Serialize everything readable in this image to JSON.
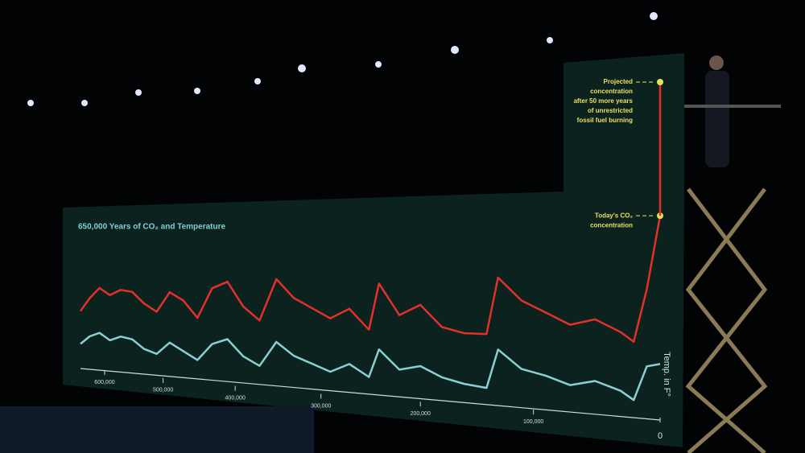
{
  "chart_data": {
    "type": "line",
    "title": "650,000 Years of CO₂ and Temperature",
    "y2_label": "Temp. in F°",
    "x": [
      650000,
      630000,
      610000,
      590000,
      570000,
      550000,
      530000,
      510000,
      490000,
      470000,
      450000,
      430000,
      410000,
      390000,
      370000,
      350000,
      330000,
      310000,
      290000,
      270000,
      250000,
      240000,
      220000,
      200000,
      180000,
      160000,
      140000,
      130000,
      110000,
      90000,
      70000,
      50000,
      30000,
      20000,
      10000,
      0
    ],
    "xlim": [
      650000,
      0
    ],
    "xticks": [
      {
        "value": 600000,
        "label": "600,000"
      },
      {
        "value": 500000,
        "label": "500,000"
      },
      {
        "value": 400000,
        "label": "400,000"
      },
      {
        "value": 300000,
        "label": "300,000"
      },
      {
        "value": 200000,
        "label": "200,000"
      },
      {
        "value": 100000,
        "label": "100,000"
      },
      0
    ],
    "ylim": [
      150,
      600
    ],
    "y2lim": [
      -15,
      5
    ],
    "series": [
      {
        "color": "#e3302a",
        "values": [
          200,
          240,
          270,
          250,
          265,
          260,
          230,
          210,
          260,
          240,
          200,
          270,
          285,
          230,
          200,
          290,
          250,
          230,
          210,
          230,
          190,
          280,
          220,
          240,
          200,
          190,
          190,
          290,
          250,
          230,
          210,
          220,
          200,
          185,
          270,
          387
        ]
      },
      {
        "color": "#8ccfd3",
        "axis": "y2",
        "values": [
          -8,
          -2,
          1,
          -3,
          0,
          -1,
          -6,
          -8,
          -1,
          -5,
          -9,
          0,
          3,
          -5,
          -9,
          3,
          -3,
          -6,
          -9,
          -5,
          -10,
          2,
          -6,
          -4,
          -8,
          -10,
          -11,
          4,
          -3,
          -5,
          -8,
          -6,
          -9,
          -12,
          0,
          1
        ]
      }
    ],
    "annotations": [
      {
        "text": [
          "Today's CO₂",
          "concentration"
        ],
        "x": 0,
        "value": 387
      },
      {
        "text": [
          "Projected",
          "concentration",
          "after 50 more years",
          "of unrestricted",
          "fossil fuel burning"
        ],
        "x": 0,
        "value": 600
      }
    ]
  }
}
